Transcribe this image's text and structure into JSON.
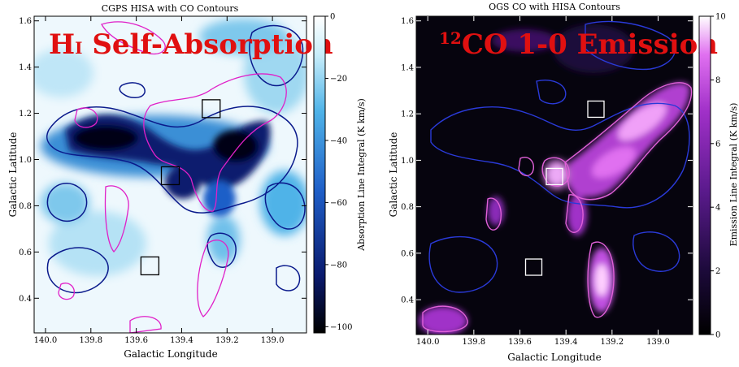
{
  "chart_data": [
    {
      "type": "heatmap",
      "title": "CGPS HISA with CO Contours",
      "overlay_label": {
        "main": "H",
        "roman": "I",
        "rest": " Self-Absorption"
      },
      "xlabel": "Galactic Longitude",
      "ylabel": "Galactic Latitude",
      "colorbar_label": "Absorption Line Integral (K km/s)",
      "xlim": [
        140.05,
        138.85
      ],
      "ylim": [
        0.25,
        1.62
      ],
      "xticks": [
        140.0,
        139.8,
        139.6,
        139.4,
        139.2,
        139.0
      ],
      "xtick_labels": [
        "140.0",
        "139.8",
        "139.6",
        "139.4",
        "139.2",
        "139.0"
      ],
      "yticks": [
        0.4,
        0.6,
        0.8,
        1.0,
        1.2,
        1.4,
        1.6
      ],
      "ytick_labels": [
        "0.4",
        "0.6",
        "0.8",
        "1.0",
        "1.2",
        "1.4",
        "1.6"
      ],
      "colorbar_range": [
        -102,
        0
      ],
      "colorbar_ticks": [
        0,
        -20,
        -40,
        -60,
        -80,
        -100
      ],
      "colorbar_tick_labels": [
        "0",
        "−20",
        "−40",
        "−60",
        "−80",
        "−100"
      ],
      "colormap": [
        "#000000",
        "#0a1a6e",
        "#1f5fc8",
        "#4fb3e8",
        "#c9eefa",
        "#ffffff"
      ],
      "contour_colors": {
        "hisa": "#0a1a8c",
        "co": "#e020c8"
      },
      "boxes": [
        {
          "l": 139.27,
          "b": 1.22
        },
        {
          "l": 139.45,
          "b": 0.93
        },
        {
          "l": 139.54,
          "b": 0.54
        }
      ]
    },
    {
      "type": "heatmap",
      "title": "OGS CO with HISA Contours",
      "overlay_label": {
        "sup": "12",
        "rest": "CO 1-0 Emission"
      },
      "xlabel": "Galactic Longitude",
      "ylabel": "Galactic Latitude",
      "colorbar_label": "Emission Line Integral (K km/s)",
      "xlim": [
        140.05,
        138.85
      ],
      "ylim": [
        0.25,
        1.62
      ],
      "xticks": [
        140.0,
        139.8,
        139.6,
        139.4,
        139.2,
        139.0
      ],
      "xtick_labels": [
        "140.0",
        "139.8",
        "139.6",
        "139.4",
        "139.2",
        "139.0"
      ],
      "yticks": [
        0.4,
        0.6,
        0.8,
        1.0,
        1.2,
        1.4,
        1.6
      ],
      "ytick_labels": [
        "0.4",
        "0.6",
        "0.8",
        "1.0",
        "1.2",
        "1.4",
        "1.6"
      ],
      "colorbar_range": [
        0,
        10
      ],
      "colorbar_ticks": [
        0,
        2,
        4,
        6,
        8,
        10
      ],
      "colorbar_tick_labels": [
        "0",
        "2",
        "4",
        "6",
        "8",
        "10"
      ],
      "colormap": [
        "#000000",
        "#1c0a3a",
        "#5a1a8c",
        "#a030c8",
        "#e070f0",
        "#ffffff"
      ],
      "contour_colors": {
        "hisa": "#2a3ad8",
        "co": "#e060d8"
      },
      "boxes": [
        {
          "l": 139.27,
          "b": 1.22
        },
        {
          "l": 139.45,
          "b": 0.93
        },
        {
          "l": 139.54,
          "b": 0.54
        }
      ]
    }
  ]
}
